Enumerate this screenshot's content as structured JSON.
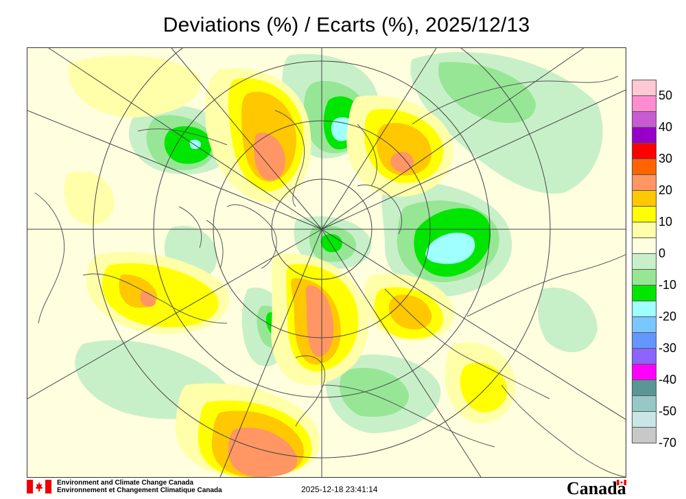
{
  "title": "Deviations (%) / Ecarts (%), 2025/12/13",
  "legend": {
    "ticks": [
      "50",
      "40",
      "30",
      "20",
      "10",
      "0",
      "-10",
      "-20",
      "-30",
      "-40",
      "-50",
      "-70"
    ],
    "colors": [
      "#ffc8d2",
      "#ff8cd2",
      "#c85ad2",
      "#9600c8",
      "#ff0000",
      "#ff6400",
      "#ff9664",
      "#ffc800",
      "#ffff00",
      "#ffffaa",
      "#ffffe0",
      "#c8f0c8",
      "#96e696",
      "#00e600",
      "#a0ffff",
      "#78c8ff",
      "#6496ff",
      "#8c64ff",
      "#ff00ff",
      "#5a9696",
      "#96c8c8",
      "#c8e6e6",
      "#c8c8c8"
    ]
  },
  "footer": {
    "dept_en": "Environment and Climate Change Canada",
    "dept_fr": "Environnement et Changement Climatique Canada",
    "timestamp": "2025-12-18 23:41:14",
    "wordmark": "Canada"
  }
}
